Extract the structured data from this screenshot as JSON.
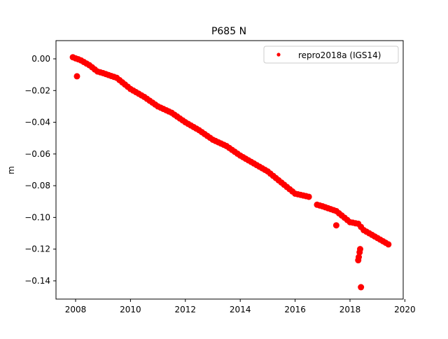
{
  "chart_data": {
    "type": "scatter",
    "title": "P685 N",
    "xlabel": "",
    "ylabel": "m",
    "xlim": [
      2007.3,
      2020.0
    ],
    "ylim": [
      -0.151,
      0.011
    ],
    "xticks": [
      "2008",
      "2010",
      "2012",
      "2014",
      "2016",
      "2018",
      "2020"
    ],
    "xtick_values": [
      2008,
      2010,
      2012,
      2014,
      2016,
      2018,
      2020
    ],
    "yticks": [
      "0.00",
      "−0.02",
      "−0.04",
      "−0.06",
      "−0.08",
      "−0.10",
      "−0.12",
      "−0.14"
    ],
    "ytick_values": [
      0,
      -0.02,
      -0.04,
      -0.06,
      -0.08,
      -0.1,
      -0.12,
      -0.14
    ],
    "grid": false,
    "legend_position": "top-right",
    "series": [
      {
        "name": "repro2018a (IGS14)",
        "color": "#ff0000",
        "marker": "dot",
        "x": [
          2007.9,
          2008.0,
          2008.1,
          2008.2,
          2008.3,
          2008.4,
          2008.5,
          2008.6,
          2008.7,
          2008.8,
          2008.9,
          2009.0,
          2009.1,
          2009.2,
          2009.3,
          2009.4,
          2009.5,
          2009.6,
          2009.7,
          2009.8,
          2009.9,
          2010.0,
          2010.1,
          2010.2,
          2010.3,
          2010.4,
          2010.5,
          2010.6,
          2010.7,
          2010.8,
          2010.9,
          2011.0,
          2011.1,
          2011.2,
          2011.3,
          2011.4,
          2011.5,
          2011.6,
          2011.7,
          2011.8,
          2011.9,
          2012.0,
          2012.1,
          2012.2,
          2012.3,
          2012.4,
          2012.5,
          2012.6,
          2012.7,
          2012.8,
          2012.9,
          2013.0,
          2013.1,
          2013.2,
          2013.3,
          2013.4,
          2013.5,
          2013.6,
          2013.7,
          2013.8,
          2013.9,
          2014.0,
          2014.1,
          2014.2,
          2014.3,
          2014.4,
          2014.5,
          2014.6,
          2014.7,
          2014.8,
          2014.9,
          2015.0,
          2015.1,
          2015.2,
          2015.3,
          2015.4,
          2015.5,
          2015.6,
          2015.7,
          2015.8,
          2015.9,
          2016.0,
          2016.1,
          2016.2,
          2016.3,
          2016.4,
          2016.5,
          2016.8,
          2016.9,
          2017.0,
          2017.1,
          2017.2,
          2017.3,
          2017.4,
          2017.5,
          2017.6,
          2017.7,
          2017.8,
          2017.9,
          2018.0,
          2018.1,
          2018.2,
          2018.3,
          2018.4,
          2018.5,
          2018.6,
          2018.7,
          2018.8,
          2018.9,
          2019.0,
          2019.1,
          2019.2,
          2019.3,
          2019.4,
          2008.05,
          2017.5,
          2018.3,
          2018.32,
          2018.35,
          2018.37,
          2018.4
        ],
        "y": [
          0.001,
          0.0003,
          -0.0003,
          -0.001,
          -0.002,
          -0.003,
          -0.004,
          -0.0053,
          -0.0067,
          -0.008,
          -0.0085,
          -0.009,
          -0.0096,
          -0.0102,
          -0.0108,
          -0.0114,
          -0.012,
          -0.0134,
          -0.0148,
          -0.0162,
          -0.0176,
          -0.019,
          -0.02,
          -0.021,
          -0.022,
          -0.023,
          -0.024,
          -0.0252,
          -0.0264,
          -0.0276,
          -0.0288,
          -0.03,
          -0.0308,
          -0.0316,
          -0.0324,
          -0.0332,
          -0.034,
          -0.0352,
          -0.0364,
          -0.0376,
          -0.0388,
          -0.04,
          -0.041,
          -0.042,
          -0.043,
          -0.044,
          -0.045,
          -0.0462,
          -0.0474,
          -0.0486,
          -0.0498,
          -0.051,
          -0.0518,
          -0.0526,
          -0.0534,
          -0.0542,
          -0.055,
          -0.0562,
          -0.0574,
          -0.0586,
          -0.0598,
          -0.061,
          -0.062,
          -0.063,
          -0.064,
          -0.065,
          -0.066,
          -0.067,
          -0.068,
          -0.069,
          -0.07,
          -0.071,
          -0.0724,
          -0.0738,
          -0.0752,
          -0.0766,
          -0.078,
          -0.0794,
          -0.0808,
          -0.0822,
          -0.0836,
          -0.085,
          -0.0854,
          -0.0858,
          -0.0862,
          -0.0866,
          -0.087,
          -0.092,
          -0.0925,
          -0.093,
          -0.0936,
          -0.0942,
          -0.0948,
          -0.0954,
          -0.096,
          -0.0974,
          -0.0988,
          -0.1002,
          -0.1016,
          -0.103,
          -0.1033,
          -0.1037,
          -0.104,
          -0.106,
          -0.108,
          -0.109,
          -0.11,
          -0.111,
          -0.112,
          -0.113,
          -0.114,
          -0.115,
          -0.116,
          -0.117,
          -0.011,
          -0.105,
          -0.127,
          -0.125,
          -0.122,
          -0.12,
          -0.144
        ]
      }
    ]
  }
}
